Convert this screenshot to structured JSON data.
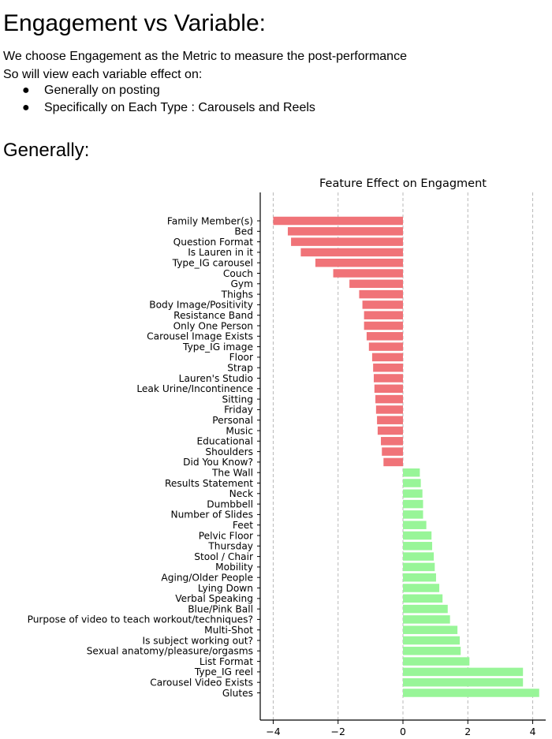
{
  "document": {
    "title": "Engagement vs Variable:",
    "intro_line1": "We choose Engagement as the Metric to measure the post-performance",
    "intro_line2": "So will view each variable effect on:",
    "bullets": [
      "Generally on posting",
      "Specifically on Each Type : Carousels and Reels"
    ],
    "bullet_symbol": "●",
    "section_heading": "Generally:"
  },
  "chart_data": {
    "type": "bar",
    "orientation": "horizontal",
    "title": "Feature Effect on Engagment",
    "xlabel": "",
    "ylabel": "",
    "xlim": [
      -4.4,
      4.4
    ],
    "xticks": [
      -4,
      -2,
      0,
      2,
      4
    ],
    "xtick_labels": [
      "−4",
      "−2",
      "0",
      "2",
      "4"
    ],
    "grid": "vertical dashed",
    "negative_color": "#f07378",
    "positive_color": "#98f598",
    "categories": [
      "Family Member(s)",
      "Bed",
      "Question Format",
      "Is Lauren in it",
      "Type_IG carousel",
      "Couch",
      "Gym",
      "Thighs",
      "Body Image/Positivity",
      "Resistance Band",
      "Only One Person ",
      "Carousel Image Exists ",
      "Type_IG image",
      "Floor",
      "Strap",
      "Lauren's Studio",
      "Leak Urine/Incontinence",
      "Sitting",
      "Friday",
      "Personal",
      "Music ",
      "Educational",
      "Shoulders",
      "Did You Know?",
      "The Wall",
      "Results Statement ",
      "Neck",
      "Dumbbell",
      "Number of Slides",
      "Feet",
      "Pelvic Floor",
      "Thursday",
      "Stool / Chair",
      "Mobility",
      "Aging/Older People",
      "Lying Down ",
      "Verbal Speaking ",
      "Blue/Pink Ball",
      "Purpose of video to teach workout/techniques?",
      "Multi-Shot",
      "Is subject working out?",
      "Sexual anatomy/pleasure/orgasms",
      "List Format ",
      "Type_IG reel",
      "Carousel Video Exists ",
      "Glutes"
    ],
    "values": [
      -4.0,
      -3.55,
      -3.45,
      -3.15,
      -2.7,
      -2.15,
      -1.65,
      -1.35,
      -1.25,
      -1.2,
      -1.2,
      -1.12,
      -1.05,
      -0.95,
      -0.92,
      -0.9,
      -0.88,
      -0.85,
      -0.83,
      -0.8,
      -0.78,
      -0.68,
      -0.65,
      -0.6,
      0.52,
      0.55,
      0.6,
      0.62,
      0.62,
      0.72,
      0.88,
      0.9,
      0.95,
      0.98,
      1.02,
      1.12,
      1.22,
      1.38,
      1.45,
      1.68,
      1.75,
      1.78,
      2.05,
      3.7,
      3.7,
      4.2
    ]
  }
}
